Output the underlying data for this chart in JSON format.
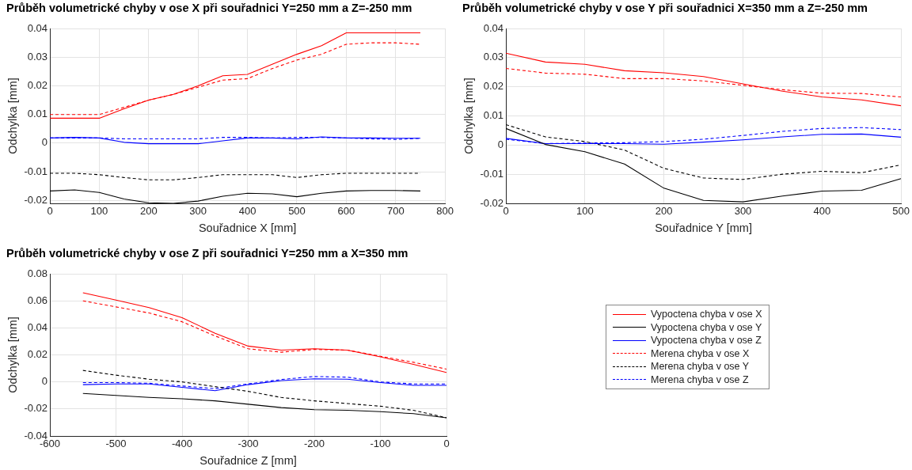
{
  "chart_data": [
    {
      "type": "line",
      "title": "Průběh volumetrické chyby v ose X při souřadnici Y=250 mm a Z=-250 mm",
      "xlabel": "Souřadnice X [mm]",
      "ylabel": "Odchylka [mm]",
      "x": [
        0,
        50,
        100,
        150,
        200,
        250,
        300,
        350,
        400,
        450,
        500,
        550,
        600,
        650,
        700,
        750
      ],
      "xlim": [
        0,
        800
      ],
      "xticks": [
        0,
        100,
        200,
        300,
        400,
        500,
        600,
        700,
        800
      ],
      "ylim": [
        -0.021,
        0.04
      ],
      "yticks": [
        -0.02,
        -0.01,
        0,
        0.01,
        0.02,
        0.03,
        0.04
      ],
      "grid": true,
      "marker": "none",
      "series": [
        {
          "color": "#ff0000",
          "line_style": "solid",
          "values": [
            0.0087,
            0.0087,
            0.0087,
            0.012,
            0.015,
            0.017,
            0.02,
            0.0235,
            0.024,
            0.0275,
            0.031,
            0.034,
            0.0385,
            0.0385,
            0.0385,
            0.0385
          ]
        },
        {
          "color": "#000000",
          "line_style": "solid",
          "values": [
            -0.0167,
            -0.0163,
            -0.0172,
            -0.0195,
            -0.0208,
            -0.021,
            -0.0202,
            -0.0185,
            -0.0175,
            -0.0177,
            -0.0187,
            -0.0175,
            -0.0167,
            -0.0165,
            -0.0165,
            -0.0167
          ]
        },
        {
          "color": "#0000ff",
          "line_style": "solid",
          "values": [
            0.0018,
            0.002,
            0.0018,
            0.0003,
            -0.0002,
            -0.0002,
            -0.0002,
            0.0008,
            0.0018,
            0.0018,
            0.0015,
            0.0022,
            0.0018,
            0.0018,
            0.0017,
            0.0017
          ]
        },
        {
          "color": "#ff0000",
          "line_style": "dashed",
          "values": [
            0.01,
            0.01,
            0.01,
            0.0125,
            0.015,
            0.017,
            0.0195,
            0.022,
            0.0225,
            0.026,
            0.029,
            0.031,
            0.0345,
            0.035,
            0.035,
            0.0345
          ]
        },
        {
          "color": "#000000",
          "line_style": "dashed",
          "values": [
            -0.0105,
            -0.0105,
            -0.011,
            -0.012,
            -0.0128,
            -0.0128,
            -0.012,
            -0.011,
            -0.011,
            -0.011,
            -0.012,
            -0.011,
            -0.0105,
            -0.0105,
            -0.0105,
            -0.0105
          ]
        },
        {
          "color": "#0000ff",
          "line_style": "dashed",
          "values": [
            0.0018,
            0.0018,
            0.0018,
            0.0015,
            0.0015,
            0.0015,
            0.0015,
            0.002,
            0.002,
            0.0018,
            0.002,
            0.002,
            0.0018,
            0.0015,
            0.0013,
            0.0017
          ]
        }
      ]
    },
    {
      "type": "line",
      "title": "Průběh volumetrické chyby v ose Y při souřadnici X=350 mm a Z=-250 mm",
      "xlabel": "Souřadnice Y [mm]",
      "ylabel": "Odchylka [mm]",
      "x": [
        0,
        50,
        100,
        150,
        200,
        250,
        300,
        350,
        400,
        450,
        500
      ],
      "xlim": [
        0,
        500
      ],
      "xticks": [
        0,
        100,
        200,
        300,
        400,
        500
      ],
      "ylim": [
        -0.02,
        0.04
      ],
      "yticks": [
        -0.02,
        -0.01,
        0,
        0.01,
        0.02,
        0.03,
        0.04
      ],
      "grid": true,
      "marker": "none",
      "series": [
        {
          "color": "#ff0000",
          "line_style": "solid",
          "values": [
            0.0315,
            0.0285,
            0.0277,
            0.0255,
            0.0248,
            0.0235,
            0.021,
            0.0185,
            0.0165,
            0.0155,
            0.0135
          ]
        },
        {
          "color": "#000000",
          "line_style": "solid",
          "values": [
            0.0057,
            0.0002,
            -0.0023,
            -0.0065,
            -0.0148,
            -0.019,
            -0.0195,
            -0.0175,
            -0.0158,
            -0.0155,
            -0.0115
          ]
        },
        {
          "color": "#0000ff",
          "line_style": "solid",
          "values": [
            0.0023,
            0.0005,
            0.0005,
            0.0005,
            0.0003,
            0.001,
            0.0018,
            0.0028,
            0.0037,
            0.0038,
            0.0027
          ]
        },
        {
          "color": "#ff0000",
          "line_style": "dashed",
          "values": [
            0.0263,
            0.0247,
            0.0243,
            0.0228,
            0.0228,
            0.022,
            0.0205,
            0.019,
            0.0178,
            0.0177,
            0.0165
          ]
        },
        {
          "color": "#000000",
          "line_style": "dashed",
          "values": [
            0.007,
            0.0028,
            0.0012,
            -0.0017,
            -0.008,
            -0.0113,
            -0.0118,
            -0.01,
            -0.009,
            -0.0095,
            -0.0068
          ]
        },
        {
          "color": "#0000ff",
          "line_style": "dashed",
          "values": [
            0.002,
            0.0005,
            0.0007,
            0.0008,
            0.0012,
            0.002,
            0.0033,
            0.0047,
            0.0057,
            0.006,
            0.0053
          ]
        }
      ]
    },
    {
      "type": "line",
      "title": "Průběh volumetrické chyby v ose Z při souřadnici Y=250 mm a X=350 mm",
      "xlabel": "Souřadnice Z [mm]",
      "ylabel": "Odchylka [mm]",
      "x": [
        -550,
        -500,
        -450,
        -400,
        -350,
        -300,
        -250,
        -200,
        -150,
        -100,
        -50,
        0
      ],
      "xlim": [
        -600,
        0
      ],
      "xticks": [
        -600,
        -500,
        -400,
        -300,
        -200,
        -100,
        0
      ],
      "ylim": [
        -0.04,
        0.08
      ],
      "yticks": [
        -0.04,
        -0.02,
        0,
        0.02,
        0.04,
        0.06,
        0.08
      ],
      "grid": true,
      "marker": "none",
      "legend": "right",
      "series": [
        {
          "name": "Vypoctena chyba v ose X",
          "color": "#ff0000",
          "line_style": "solid",
          "values": [
            0.066,
            0.0605,
            0.055,
            0.0475,
            0.036,
            0.0265,
            0.0235,
            0.0245,
            0.0235,
            0.0185,
            0.013,
            0.007
          ]
        },
        {
          "name": "Vypoctena chyba v ose Y",
          "color": "#000000",
          "line_style": "solid",
          "values": [
            -0.0085,
            -0.01,
            -0.0115,
            -0.0125,
            -0.014,
            -0.0165,
            -0.019,
            -0.0205,
            -0.021,
            -0.022,
            -0.0235,
            -0.0265
          ]
        },
        {
          "name": "Vypoctena chyba v ose Z",
          "color": "#0000ff",
          "line_style": "solid",
          "values": [
            -0.002,
            -0.0015,
            -0.0015,
            -0.004,
            -0.0065,
            -0.002,
            0.001,
            0.0023,
            0.002,
            -0.0005,
            -0.0025,
            -0.0025
          ]
        },
        {
          "name": "Merena chyba v ose X",
          "color": "#ff0000",
          "line_style": "dashed",
          "values": [
            0.06,
            0.0555,
            0.051,
            0.0445,
            0.034,
            0.0245,
            0.022,
            0.024,
            0.0235,
            0.019,
            0.0145,
            0.0095
          ]
        },
        {
          "name": "Merena chyba v ose Y",
          "color": "#000000",
          "line_style": "dashed",
          "values": [
            0.0085,
            0.005,
            0.002,
            0,
            -0.0035,
            -0.007,
            -0.0115,
            -0.014,
            -0.016,
            -0.018,
            -0.021,
            -0.0265
          ]
        },
        {
          "name": "Merena chyba v ose Z",
          "color": "#0000ff",
          "line_style": "dashed",
          "values": [
            -0.0005,
            -0.0005,
            -0.001,
            -0.003,
            -0.005,
            -0.0015,
            0.0018,
            0.004,
            0.0035,
            0,
            -0.0015,
            -0.0015
          ]
        }
      ]
    }
  ]
}
